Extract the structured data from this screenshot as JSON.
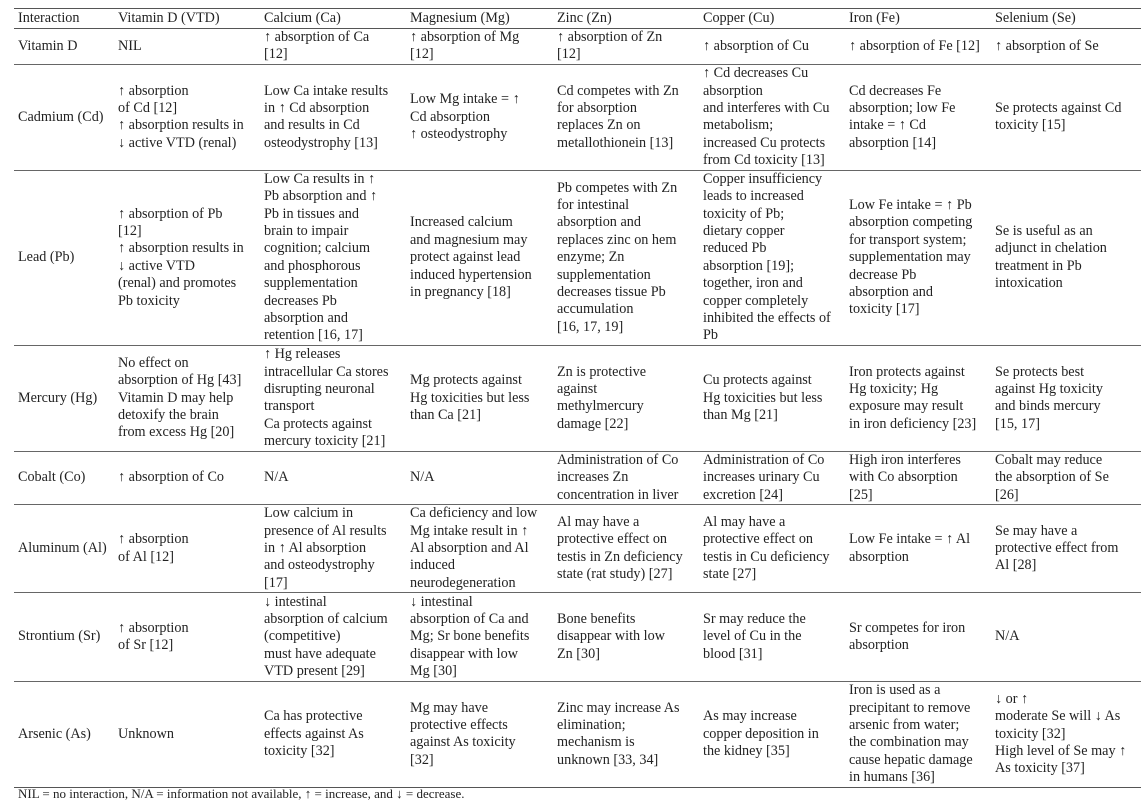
{
  "columns": [
    "Interaction",
    "Vitamin D (VTD)",
    "Calcium (Ca)",
    "Magnesium (Mg)",
    "Zinc (Zn)",
    "Copper (Cu)",
    "Iron (Fe)",
    "Selenium (Se)"
  ],
  "rows": [
    {
      "label": "Vitamin D",
      "cells": [
        "NIL",
        "↑ absorption of Ca\n[12]",
        "↑ absorption of Mg\n[12]",
        "↑ absorption of Zn\n[12]",
        "↑ absorption of Cu",
        "↑ absorption of Fe [12]",
        "↑ absorption of Se"
      ]
    },
    {
      "label": "Cadmium (Cd)",
      "cells": [
        "↑ absorption\nof Cd [12]\n↑ absorption results in\n↓ active VTD (renal)",
        "Low Ca intake results\nin ↑ Cd absorption\nand results in Cd\nosteodystrophy [13]",
        "Low Mg intake = ↑\nCd absorption\n↑ osteodystrophy",
        "Cd competes with Zn\nfor absorption\nreplaces Zn on\nmetallothionein [13]",
        "↑ Cd decreases Cu\nabsorption\nand interferes with Cu\nmetabolism;\nincreased Cu protects\nfrom Cd toxicity [13]",
        "Cd decreases Fe\nabsorption; low Fe\nintake = ↑ Cd\nabsorption [14]",
        "Se protects against Cd\ntoxicity [15]"
      ]
    },
    {
      "label": "Lead (Pb)",
      "cells": [
        "↑ absorption of Pb\n[12]\n↑ absorption results in\n↓ active VTD\n(renal) and promotes\nPb toxicity",
        "Low Ca results in ↑\nPb absorption and ↑\nPb in tissues and\nbrain to impair\ncognition; calcium\nand phosphorous\nsupplementation\ndecreases Pb\nabsorption and\nretention [16, 17]",
        "Increased calcium\nand magnesium may\nprotect against lead\ninduced hypertension\nin pregnancy [18]",
        "Pb competes with Zn\nfor intestinal\nabsorption and\nreplaces zinc on hem\nenzyme; Zn\nsupplementation\ndecreases tissue Pb\naccumulation\n[16, 17, 19]",
        "Copper insufficiency\nleads to increased\ntoxicity of Pb;\ndietary copper\nreduced Pb\nabsorption [19];\ntogether, iron and\ncopper completely\ninhibited the effects of\nPb",
        "Low Fe intake = ↑ Pb\nabsorption competing\nfor transport system;\nsupplementation may\ndecrease Pb\nabsorption and\ntoxicity [17]",
        "Se is useful as an\nadjunct in chelation\ntreatment in Pb\nintoxication"
      ]
    },
    {
      "label": "Mercury (Hg)",
      "cells": [
        "No effect on\nabsorption of Hg [43]\nVitamin D may help\ndetoxify the brain\nfrom excess Hg [20]",
        "↑ Hg releases\nintracellular Ca stores\ndisrupting neuronal\ntransport\nCa protects against\nmercury toxicity [21]",
        "Mg protects against\nHg toxicities but less\nthan Ca [21]",
        "Zn is protective\nagainst\nmethylmercury\ndamage [22]",
        "Cu protects against\nHg toxicities but less\nthan Mg [21]",
        "Iron protects against\nHg toxicity; Hg\nexposure may result\nin iron deficiency [23]",
        "Se protects best\nagainst Hg toxicity\nand binds mercury\n[15, 17]"
      ]
    },
    {
      "label": "Cobalt (Co)",
      "cells": [
        "↑ absorption of Co",
        "N/A",
        "N/A",
        "Administration of Co\nincreases Zn\nconcentration in liver",
        "Administration of Co\nincreases urinary Cu\nexcretion [24]",
        "High iron interferes\nwith Co absorption\n[25]",
        "Cobalt may reduce\nthe absorption of Se\n[26]"
      ]
    },
    {
      "label": "Aluminum (Al)",
      "cells": [
        "↑ absorption\nof Al [12]",
        "Low calcium in\npresence of Al results\nin ↑ Al absorption\nand osteodystrophy\n[17]",
        "Ca deficiency and low\nMg intake result in ↑\nAl absorption and Al\ninduced\nneurodegeneration",
        "Al may have a\nprotective effect on\ntestis in Zn deficiency\nstate (rat study) [27]",
        "Al may have a\nprotective effect on\ntestis in Cu deficiency\nstate [27]",
        "Low Fe intake = ↑ Al\nabsorption",
        "Se may have a\nprotective effect from\nAl [28]"
      ]
    },
    {
      "label": "Strontium (Sr)",
      "cells": [
        "↑ absorption\nof Sr [12]",
        "↓ intestinal\nabsorption of calcium\n(competitive)\nmust have adequate\nVTD present [29]",
        "↓ intestinal\nabsorption of Ca and\nMg; Sr bone benefits\ndisappear with low\nMg [30]",
        "Bone benefits\ndisappear with low\nZn [30]",
        "Sr may reduce the\nlevel of Cu in the\nblood [31]",
        "Sr competes for iron\nabsorption",
        "N/A"
      ]
    },
    {
      "label": "Arsenic (As)",
      "cells": [
        "Unknown",
        "Ca has protective\neffects against As\ntoxicity [32]",
        "Mg may have\nprotective effects\nagainst As toxicity\n[32]",
        "Zinc may increase As\nelimination;\nmechanism is\nunknown [33, 34]",
        "As may increase\ncopper deposition in\nthe kidney [35]",
        "Iron is used as a\nprecipitant to remove\narsenic from water;\nthe combination may\ncause hepatic damage\nin humans [36]",
        "↓ or ↑\nmoderate Se will ↓ As\ntoxicity [32]\nHigh level of Se may ↑\nAs toxicity [37]"
      ]
    }
  ],
  "footnote": "NIL = no interaction, N/A = information not available, ↑ = increase, and ↓ = decrease."
}
